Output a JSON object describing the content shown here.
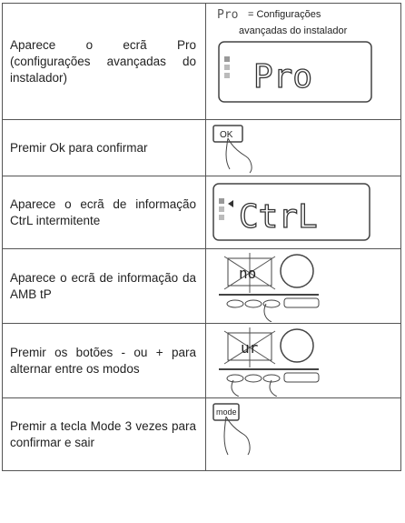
{
  "rows": [
    {
      "text": "Aparece o ecrã Pro (configurações avançadas do instalador)",
      "symbol": "Pro",
      "note_1": "= Configurações",
      "note_2": "avançadas do instalador",
      "display": "Pro"
    },
    {
      "text": "Premir Ok para confirmar",
      "button": "OK"
    },
    {
      "text": "Aparece o ecrã de informação CtrL intermitente",
      "display": "CtrL"
    },
    {
      "text": "Aparece o ecrã de informação da AMB tP",
      "display": "no"
    },
    {
      "text": "Premir os botões - ou + para alternar entre os modos",
      "display": "ur"
    },
    {
      "text": "Premir a tecla Mode 3 vezes para confirmar e sair",
      "button": "mode"
    }
  ]
}
